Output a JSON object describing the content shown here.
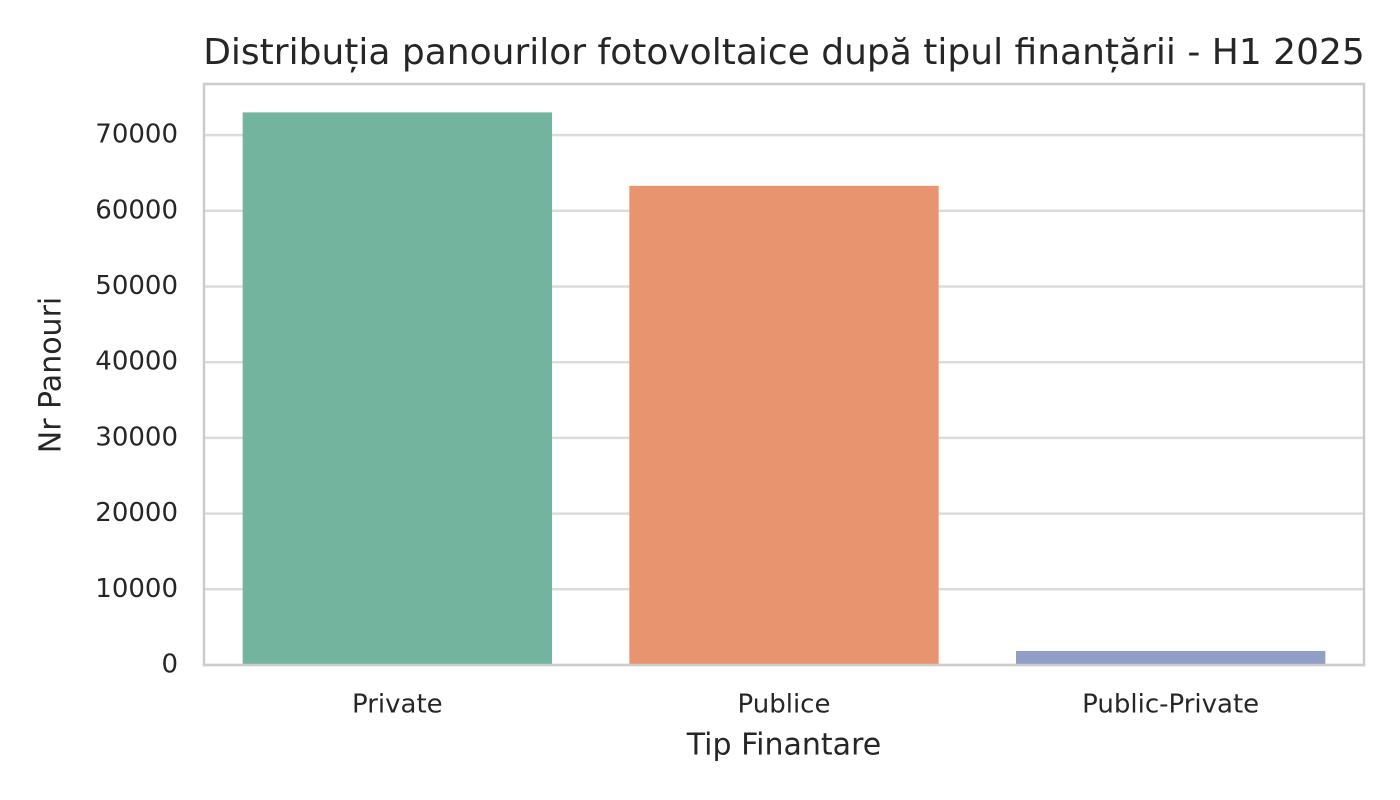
{
  "chart_data": {
    "type": "bar",
    "title": "Distribuția panourilor fotovoltaice după tipul finanțării - H1 2025",
    "x_label": "Tip Finantare",
    "y_label": "Nr Panouri",
    "categories": [
      "Private",
      "Publice",
      "Public-Private"
    ],
    "values": [
      73000,
      63300,
      1850
    ],
    "colors": [
      "#73b49f",
      "#e8956f",
      "#8f9fc5"
    ],
    "ylim": [
      0,
      76750
    ],
    "yticks": [
      0,
      10000,
      20000,
      30000,
      40000,
      50000,
      60000,
      70000
    ],
    "grid": true
  }
}
